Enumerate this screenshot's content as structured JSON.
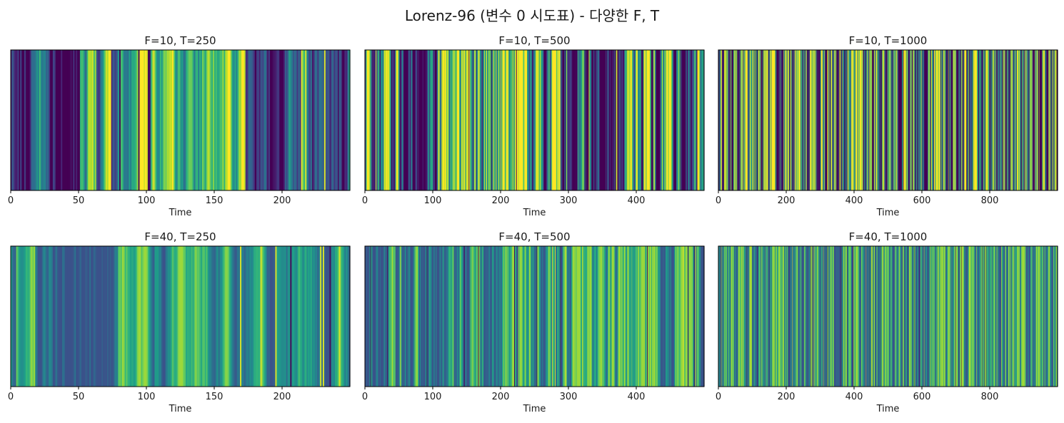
{
  "figure": {
    "suptitle": "Lorenz-96 (변수 0 시도표) - 다양한 F, T"
  },
  "chart_data": [
    {
      "type": "heatmap",
      "title": "F=10, T=250",
      "F": 10,
      "T": 250,
      "xlabel": "Time",
      "xlim": [
        0,
        250
      ],
      "xticks": [
        0,
        50,
        100,
        150,
        200
      ],
      "yticks": [],
      "colormap": "viridis",
      "seed": 11
    },
    {
      "type": "heatmap",
      "title": "F=10, T=500",
      "F": 10,
      "T": 500,
      "xlabel": "Time",
      "xlim": [
        0,
        500
      ],
      "xticks": [
        0,
        100,
        200,
        300,
        400
      ],
      "yticks": [],
      "colormap": "viridis",
      "seed": 23
    },
    {
      "type": "heatmap",
      "title": "F=10, T=1000",
      "F": 10,
      "T": 1000,
      "xlabel": "Time",
      "xlim": [
        0,
        1000
      ],
      "xticks": [
        0,
        200,
        400,
        600,
        800
      ],
      "yticks": [],
      "colormap": "viridis",
      "seed": 37
    },
    {
      "type": "heatmap",
      "title": "F=40, T=250",
      "F": 40,
      "T": 250,
      "xlabel": "Time",
      "xlim": [
        0,
        250
      ],
      "xticks": [
        0,
        50,
        100,
        150,
        200
      ],
      "yticks": [],
      "colormap": "viridis",
      "seed": 41
    },
    {
      "type": "heatmap",
      "title": "F=40, T=500",
      "F": 40,
      "T": 500,
      "xlabel": "Time",
      "xlim": [
        0,
        500
      ],
      "xticks": [
        0,
        100,
        200,
        300,
        400
      ],
      "yticks": [],
      "colormap": "viridis",
      "seed": 53
    },
    {
      "type": "heatmap",
      "title": "F=40, T=1000",
      "F": 40,
      "T": 1000,
      "xlabel": "Time",
      "xlim": [
        0,
        1000
      ],
      "xticks": [
        0,
        200,
        400,
        600,
        800
      ],
      "yticks": [],
      "colormap": "viridis",
      "seed": 67
    }
  ]
}
